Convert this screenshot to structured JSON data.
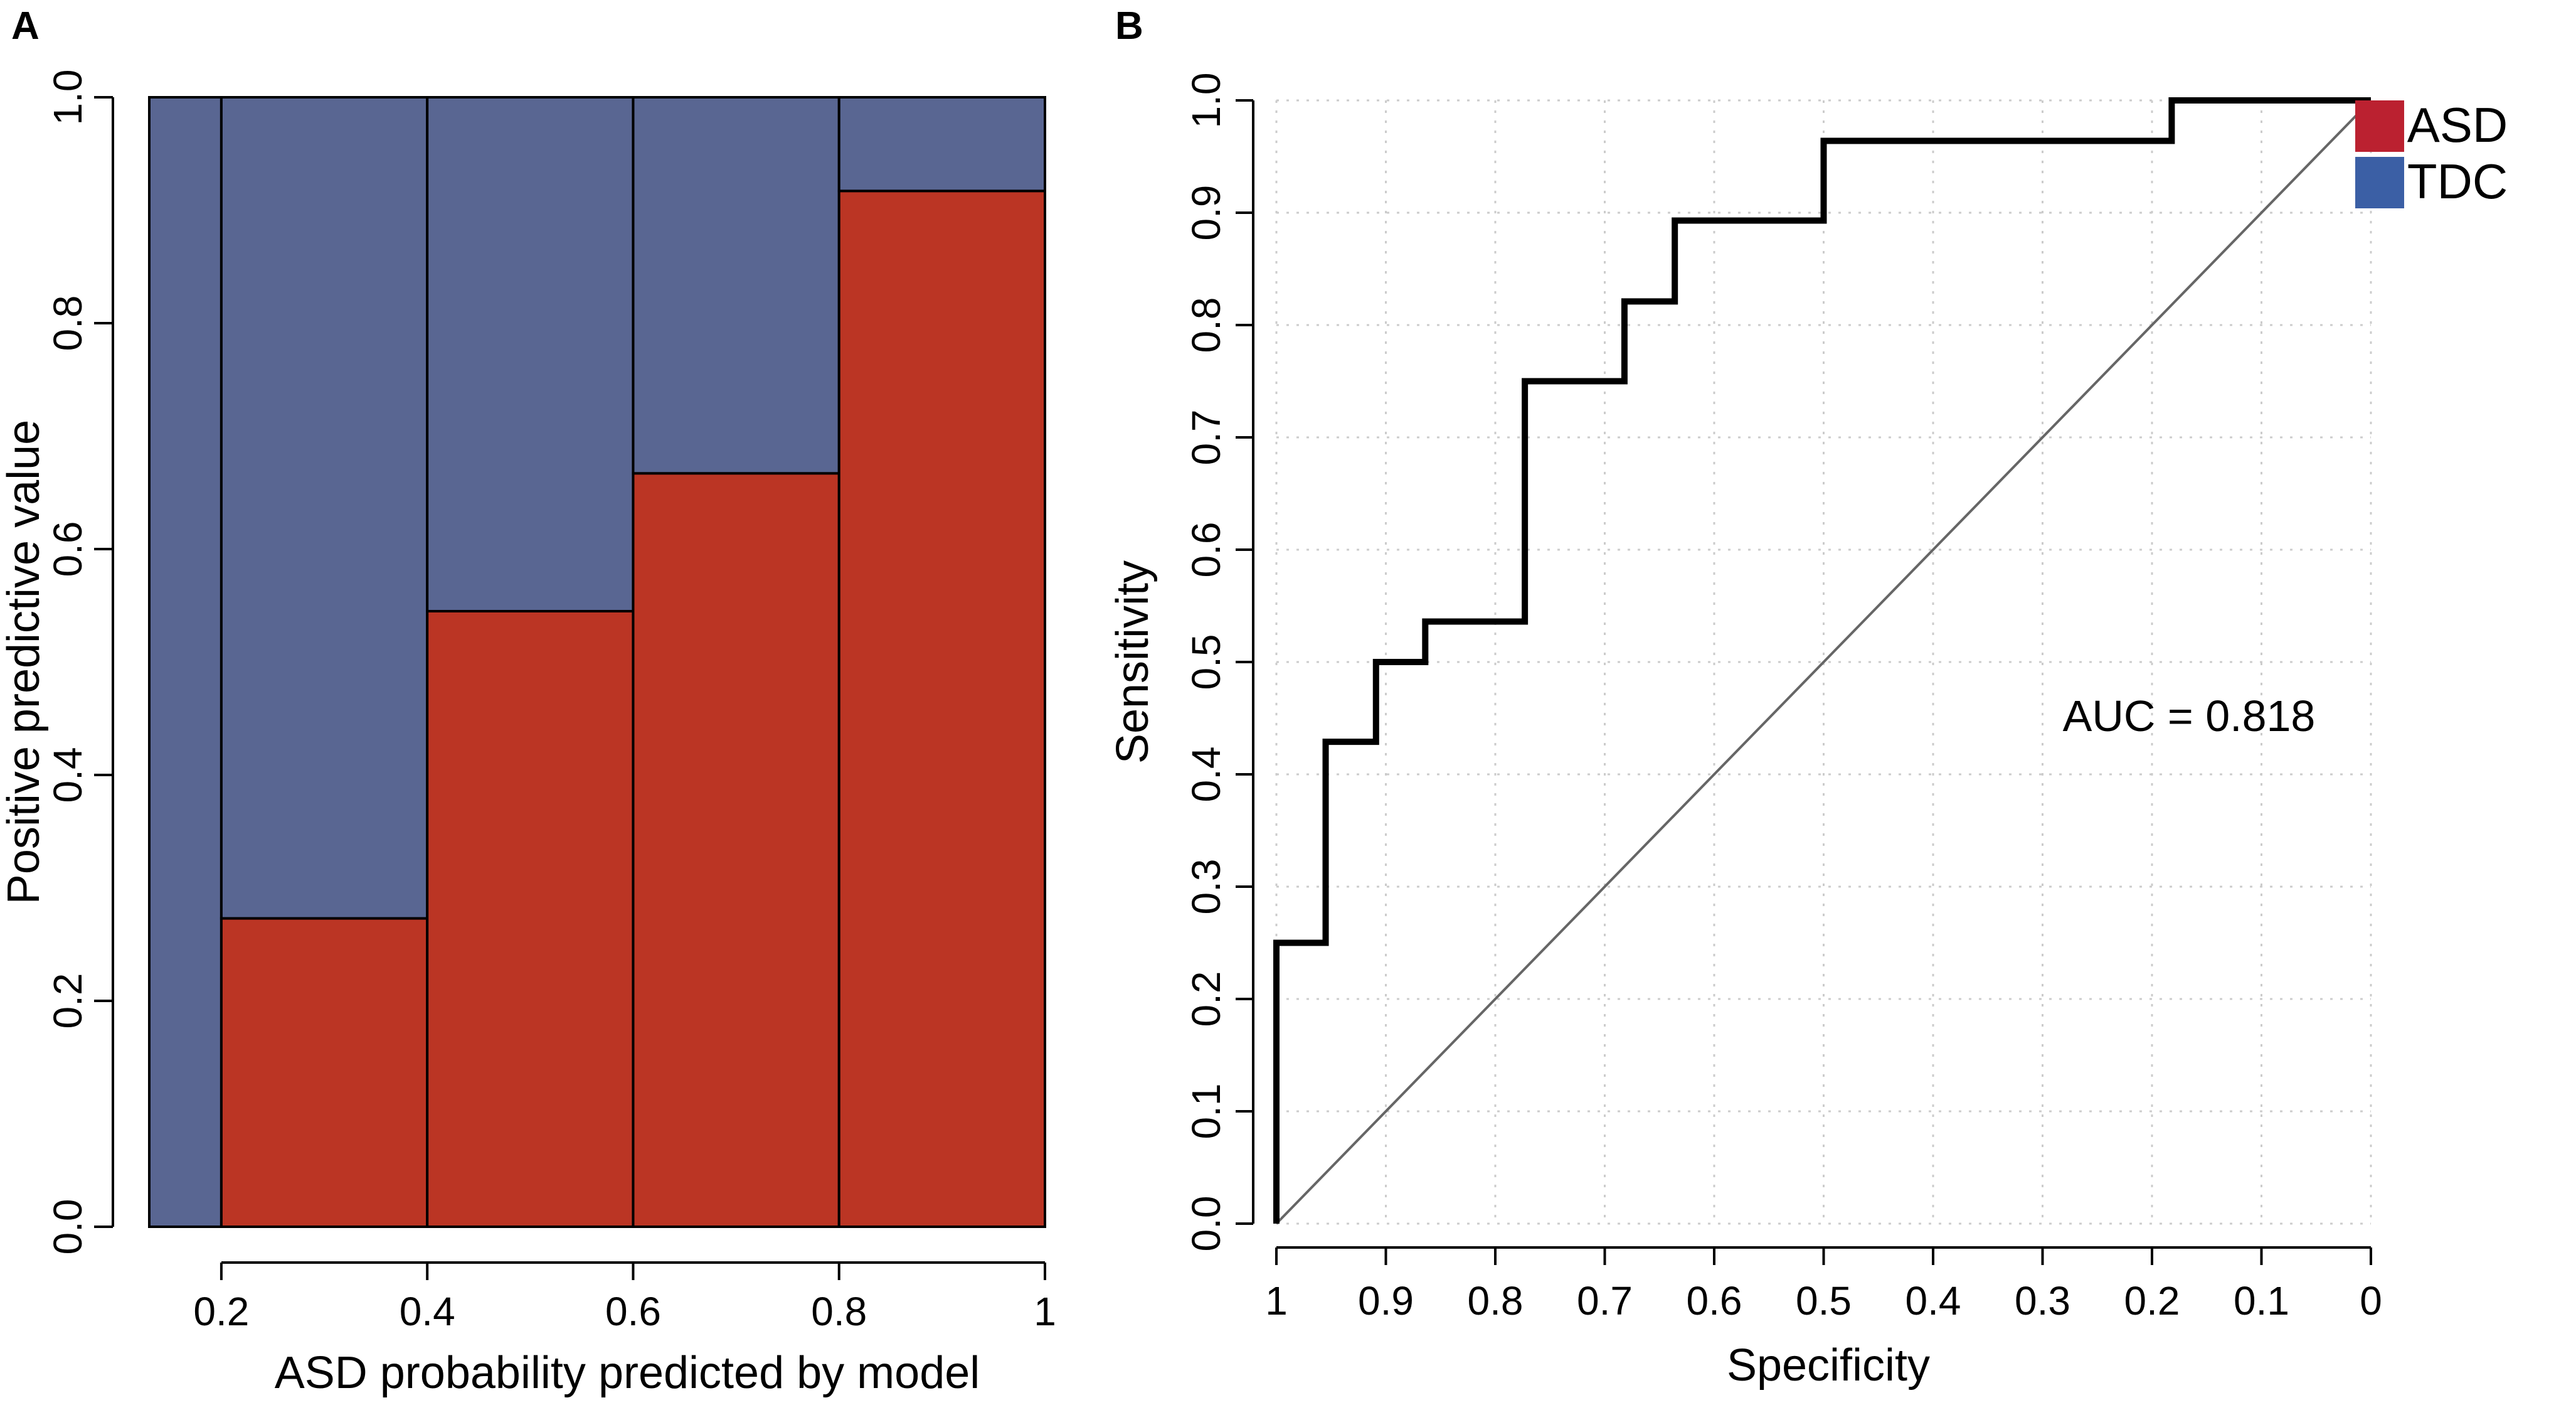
{
  "chart_data": [
    {
      "panel": "A",
      "type": "bar",
      "subtype": "stacked-spinogram",
      "xlabel": "ASD probability predicted by model",
      "ylabel": "Positive predictive value",
      "xlim": [
        0.13,
        1.0
      ],
      "ylim": [
        0,
        1
      ],
      "xticks": [
        "0.2",
        "0.4",
        "0.6",
        "0.8",
        "1"
      ],
      "yticks": [
        "0.0",
        "0.2",
        "0.4",
        "0.6",
        "0.8",
        "1.0"
      ],
      "bins": [
        {
          "from": 0.13,
          "to": 0.2,
          "asd": 0.0
        },
        {
          "from": 0.2,
          "to": 0.4,
          "asd": 0.273
        },
        {
          "from": 0.4,
          "to": 0.6,
          "asd": 0.545
        },
        {
          "from": 0.6,
          "to": 0.8,
          "asd": 0.667
        },
        {
          "from": 0.8,
          "to": 1.0,
          "asd": 0.917
        }
      ],
      "colors": {
        "asd": "#bb3524",
        "tdc": "#596692"
      }
    },
    {
      "panel": "B",
      "type": "line",
      "subtype": "roc",
      "xlabel": "Specificity",
      "ylabel": "Sensitivity",
      "xlim": [
        1,
        0
      ],
      "ylim": [
        0,
        1
      ],
      "xticks": [
        "1",
        "0.9",
        "0.8",
        "0.7",
        "0.6",
        "0.5",
        "0.4",
        "0.3",
        "0.2",
        "0.1",
        "0"
      ],
      "yticks": [
        "0.0",
        "0.1",
        "0.2",
        "0.3",
        "0.4",
        "0.5",
        "0.6",
        "0.7",
        "0.8",
        "0.9",
        "1.0"
      ],
      "grid": true,
      "auc_label": "AUC = 0.818",
      "roc": {
        "specificity": [
          1.0,
          1.0,
          0.955,
          0.955,
          0.909,
          0.909,
          0.864,
          0.864,
          0.773,
          0.773,
          0.682,
          0.682,
          0.636,
          0.636,
          0.5,
          0.5,
          0.182,
          0.182,
          0.0
        ],
        "sensitivity": [
          0.0,
          0.25,
          0.25,
          0.429,
          0.429,
          0.5,
          0.5,
          0.536,
          0.536,
          0.75,
          0.75,
          0.821,
          0.821,
          0.893,
          0.893,
          0.964,
          0.964,
          1.0,
          1.0
        ]
      },
      "diagonal": [
        [
          1,
          0
        ],
        [
          0,
          1
        ]
      ]
    }
  ],
  "legend": {
    "items": [
      {
        "label": "ASD",
        "color": "#bb2130"
      },
      {
        "label": "TDC",
        "color": "#3b5fa5"
      }
    ],
    "placement": "top-right"
  }
}
